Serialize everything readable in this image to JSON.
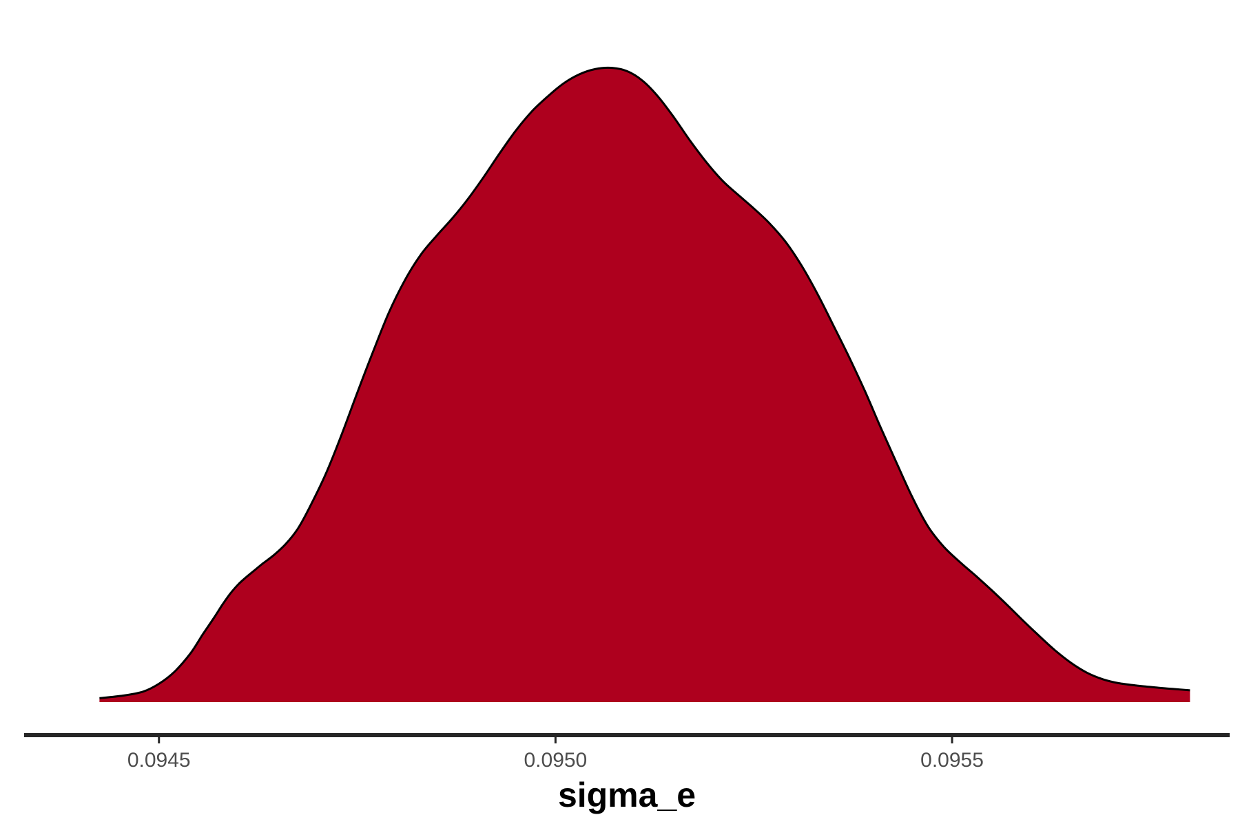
{
  "chart_data": {
    "type": "area",
    "title": "",
    "xlabel": "sigma_e",
    "ylabel": "",
    "xlim": [
      0.09433,
      0.09585
    ],
    "ylim": [
      0,
      1
    ],
    "grid": false,
    "x_ticks": [
      0.0945,
      0.095,
      0.0955
    ],
    "x_tick_labels": [
      "0.0945",
      "0.0950",
      "0.0955"
    ],
    "y_ticks": [],
    "series": [
      {
        "fill_color": "#ae001e",
        "line_color": "#000000",
        "x": [
          0.094425,
          0.094455,
          0.09448,
          0.0945,
          0.09452,
          0.09454,
          0.094555,
          0.09457,
          0.09458,
          0.09459,
          0.0946,
          0.09461,
          0.09462,
          0.09463,
          0.094645,
          0.09466,
          0.094675,
          0.09469,
          0.09471,
          0.09473,
          0.09475,
          0.09477,
          0.09479,
          0.09481,
          0.09483,
          0.09485,
          0.09487,
          0.09489,
          0.09491,
          0.09493,
          0.09495,
          0.09497,
          0.09499,
          0.09501,
          0.09503,
          0.09505,
          0.09507,
          0.09509,
          0.09511,
          0.09513,
          0.09515,
          0.09517,
          0.09519,
          0.09521,
          0.09523,
          0.09525,
          0.09527,
          0.09529,
          0.09531,
          0.09533,
          0.09535,
          0.09537,
          0.09539,
          0.09541,
          0.09543,
          0.09545,
          0.09547,
          0.09549,
          0.09551,
          0.09553,
          0.09555,
          0.09557,
          0.09559,
          0.09561,
          0.09563,
          0.09565,
          0.09567,
          0.09569,
          0.09571,
          0.095735,
          0.09576,
          0.09578,
          0.0958
        ],
        "y": [
          0.006,
          0.01,
          0.016,
          0.028,
          0.047,
          0.075,
          0.103,
          0.13,
          0.149,
          0.166,
          0.18,
          0.191,
          0.201,
          0.211,
          0.225,
          0.242,
          0.265,
          0.298,
          0.348,
          0.408,
          0.473,
          0.536,
          0.596,
          0.645,
          0.684,
          0.713,
          0.74,
          0.77,
          0.804,
          0.84,
          0.874,
          0.903,
          0.926,
          0.946,
          0.96,
          0.968,
          0.97,
          0.965,
          0.95,
          0.925,
          0.893,
          0.858,
          0.826,
          0.798,
          0.776,
          0.755,
          0.732,
          0.704,
          0.668,
          0.625,
          0.577,
          0.528,
          0.476,
          0.42,
          0.366,
          0.313,
          0.268,
          0.237,
          0.214,
          0.193,
          0.171,
          0.148,
          0.124,
          0.101,
          0.079,
          0.06,
          0.045,
          0.035,
          0.029,
          0.025,
          0.022,
          0.02,
          0.018
        ]
      }
    ]
  }
}
